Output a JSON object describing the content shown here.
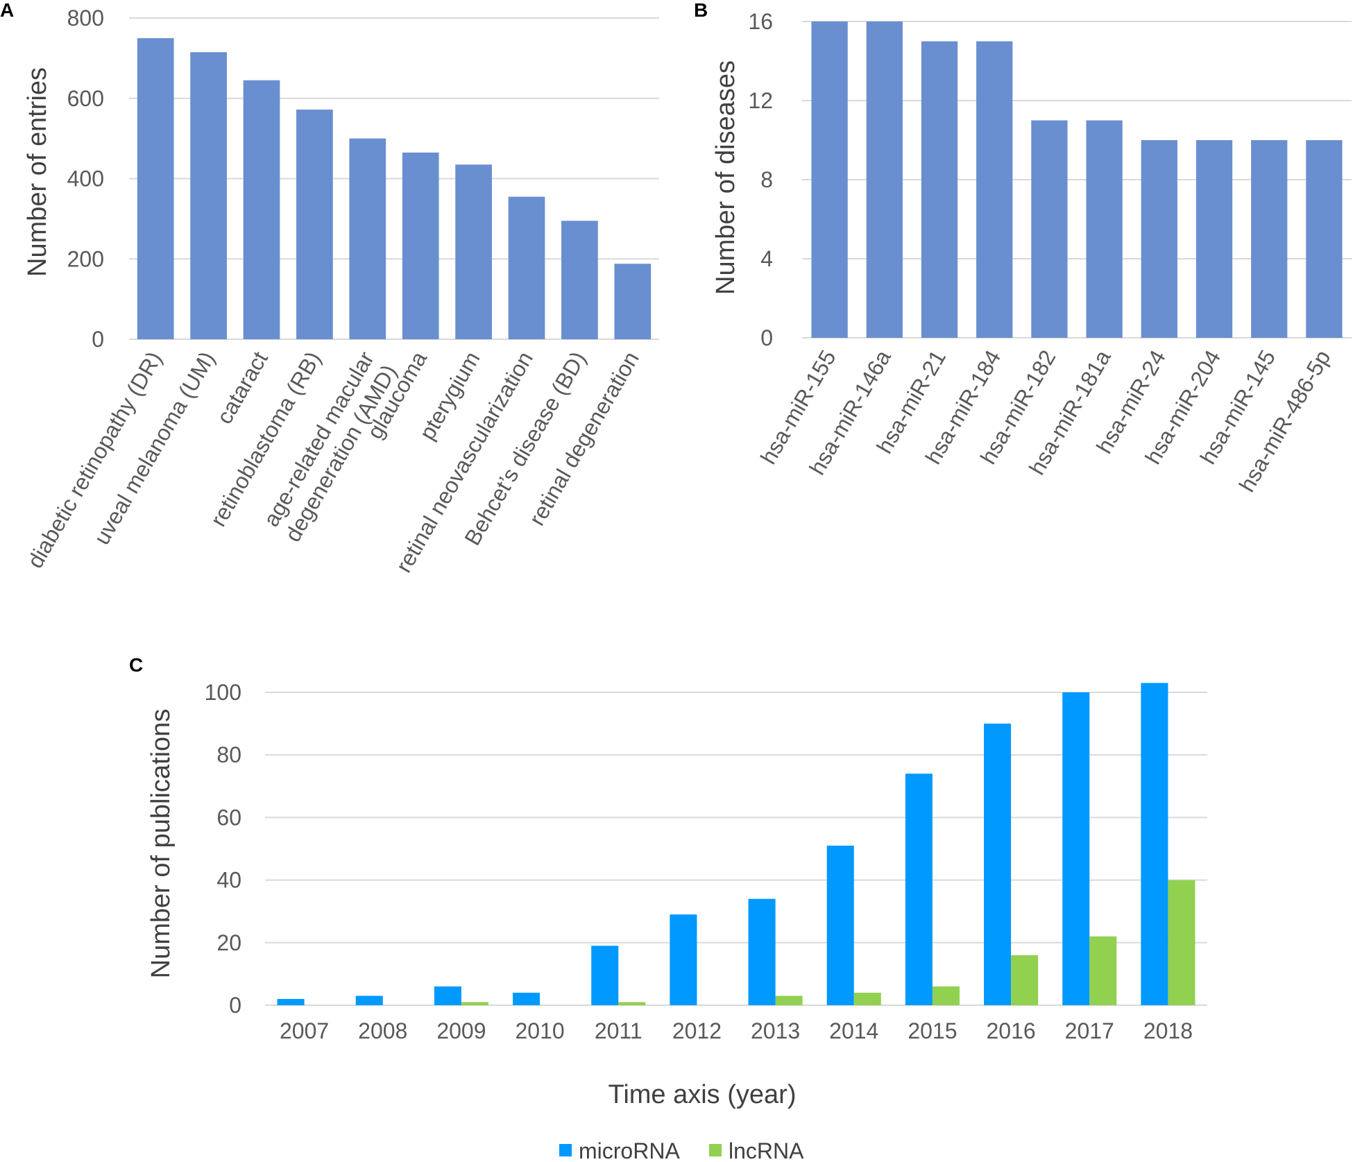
{
  "chart_data": [
    {
      "panel": "A",
      "type": "bar",
      "categories": [
        [
          "diabetic retinopathy (DR)"
        ],
        [
          "uveal melanoma (UM)"
        ],
        [
          "cataract"
        ],
        [
          "retinoblastoma (RB)"
        ],
        [
          "age-related macular",
          "degeneration (AMD)"
        ],
        [
          "glaucoma"
        ],
        [
          "pterygium"
        ],
        [
          "retinal neovascularization"
        ],
        [
          "Behcet’s disease (BD)"
        ],
        [
          "retinal degeneration"
        ]
      ],
      "values": [
        750,
        715,
        645,
        572,
        500,
        465,
        435,
        355,
        295,
        188
      ],
      "ylabel": "Number of entries",
      "xlabel": "",
      "ylim": [
        0,
        800
      ],
      "yticks": [
        0,
        200,
        400,
        600,
        800
      ],
      "grid": true,
      "color": "#6a8fd0"
    },
    {
      "panel": "B",
      "type": "bar",
      "categories": [
        [
          "hsa-miR-155"
        ],
        [
          "hsa-miR-146a"
        ],
        [
          "hsa-miR-21"
        ],
        [
          "hsa-miR-184"
        ],
        [
          "hsa-miR-182"
        ],
        [
          "hsa-miR-181a"
        ],
        [
          "hsa-miR-24"
        ],
        [
          "hsa-miR-204"
        ],
        [
          "hsa-miR-145"
        ],
        [
          "hsa-miR-486-5p"
        ]
      ],
      "values": [
        16,
        16,
        15,
        15,
        11,
        11,
        10,
        10,
        10,
        10
      ],
      "ylabel": "Number of diseases",
      "xlabel": "",
      "ylim": [
        0,
        16
      ],
      "yticks": [
        0,
        4,
        8,
        12,
        16
      ],
      "grid": true,
      "color": "#6a8fd0"
    },
    {
      "panel": "C",
      "type": "bar",
      "categories": [
        "2007",
        "2008",
        "2009",
        "2010",
        "2011",
        "2012",
        "2013",
        "2014",
        "2015",
        "2016",
        "2017",
        "2018"
      ],
      "series": [
        {
          "name": "microRNA",
          "color": "#0099ff",
          "values": [
            2,
            3,
            6,
            4,
            19,
            29,
            34,
            51,
            74,
            90,
            100,
            103
          ]
        },
        {
          "name": "lncRNA",
          "color": "#92d050",
          "values": [
            0,
            0,
            1,
            0,
            1,
            0,
            3,
            4,
            6,
            16,
            22,
            40
          ]
        }
      ],
      "ylabel": "Number of publications",
      "xlabel": "Time axis (year)",
      "ylim": [
        0,
        100
      ],
      "yticks": [
        0,
        20,
        40,
        60,
        80,
        100
      ],
      "grid": true,
      "legend": "bottom"
    }
  ]
}
